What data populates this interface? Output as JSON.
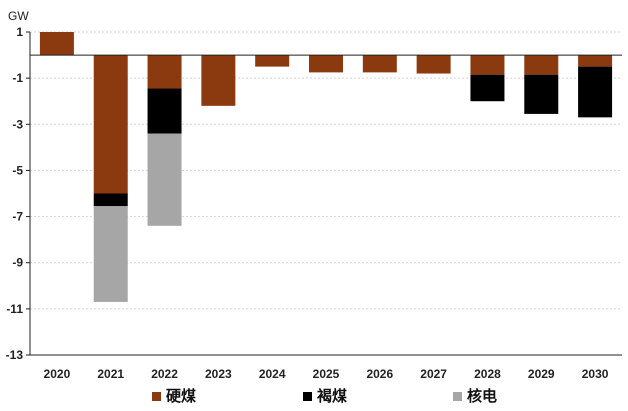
{
  "chart_data": {
    "type": "bar",
    "stacked": true,
    "unit_label": "GW",
    "categories": [
      "2020",
      "2021",
      "2022",
      "2023",
      "2024",
      "2025",
      "2026",
      "2027",
      "2028",
      "2029",
      "2030"
    ],
    "series": [
      {
        "name": "硬煤",
        "color": "#8B3A0F",
        "values": [
          1.0,
          -6.0,
          -1.45,
          -2.2,
          -0.5,
          -0.75,
          -0.75,
          -0.8,
          -0.85,
          -0.85,
          -0.5
        ]
      },
      {
        "name": "褐煤",
        "color": "#000000",
        "values": [
          0,
          -0.55,
          -1.95,
          0,
          0,
          0,
          0,
          0,
          -1.15,
          -1.7,
          -2.2
        ]
      },
      {
        "name": "核电",
        "color": "#A6A6A6",
        "values": [
          0,
          -4.15,
          -4.0,
          0,
          0,
          0,
          0,
          0,
          0,
          0,
          0
        ]
      }
    ],
    "ylim": [
      -13,
      1
    ],
    "yticks": [
      "1",
      "-1",
      "-3",
      "-5",
      "-7",
      "-9",
      "-11",
      "-13"
    ],
    "ytick_values": [
      1,
      -1,
      -3,
      -5,
      -7,
      -9,
      -11,
      -13
    ],
    "grid": "horizontal-dashed",
    "legend_position": "bottom"
  }
}
